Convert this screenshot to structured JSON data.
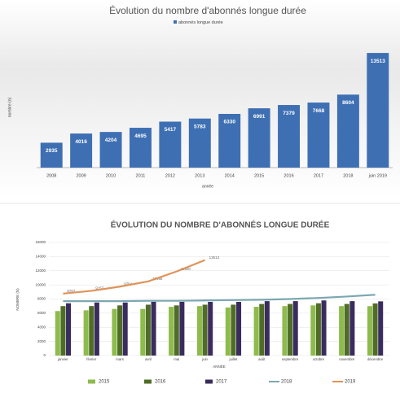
{
  "chart_data": [
    {
      "type": "bar",
      "title": "Évolution du nombre d'abonnés longue durée",
      "x_label": "année",
      "y_label": "nombre (n)",
      "categories": [
        "2008",
        "2009",
        "2010",
        "2011",
        "2012",
        "2013",
        "2014",
        "2015",
        "2016",
        "2017",
        "2018",
        "juin 2019"
      ],
      "series": [
        {
          "name": "abonnés longue durée",
          "color": "#3e6fb3",
          "values": [
            2935,
            4016,
            4204,
            4695,
            5417,
            5783,
            6330,
            6991,
            7379,
            7668,
            8604,
            13513
          ]
        }
      ],
      "ylim": [
        0,
        14000
      ],
      "data_labels": true
    },
    {
      "type": "combo",
      "title": "ÉVOLUTION DU NOMBRE D'ABONNÉS LONGUE DURÉE",
      "x_label": "ANNÉE",
      "y_label": "NOMBRE (N)",
      "categories": [
        "janvier",
        "février",
        "mars",
        "avril",
        "mai",
        "juin",
        "juillet",
        "août",
        "septembre",
        "octobre",
        "novembre",
        "décembre"
      ],
      "ylim": [
        0,
        16000
      ],
      "yticks": [
        0,
        2000,
        4000,
        6000,
        8000,
        10000,
        12000,
        14000,
        16000
      ],
      "grid": true,
      "legend": "bottom",
      "series": [
        {
          "name": "2015",
          "mark": "bar",
          "color": "#8dbb4c",
          "values": [
            6300,
            6400,
            6600,
            6600,
            6900,
            7000,
            6800,
            6900,
            7000,
            7100,
            7000,
            6991
          ]
        },
        {
          "name": "2016",
          "mark": "bar",
          "color": "#4f6d27",
          "values": [
            7000,
            7000,
            7100,
            7200,
            7100,
            7200,
            7200,
            7300,
            7300,
            7400,
            7300,
            7379
          ]
        },
        {
          "name": "2017",
          "mark": "bar",
          "color": "#3a2c5c",
          "values": [
            7400,
            7500,
            7500,
            7600,
            7600,
            7600,
            7600,
            7700,
            7700,
            7800,
            7700,
            7668
          ]
        },
        {
          "name": "2018",
          "mark": "line",
          "color": "#7ba7b1",
          "values": [
            7700,
            7700,
            7700,
            7750,
            7750,
            7800,
            7850,
            7900,
            8000,
            8150,
            8350,
            8604
          ]
        },
        {
          "name": "2019",
          "mark": "line",
          "color": "#df935a",
          "data_labels": true,
          "values": [
            8767,
            9157,
            9754,
            10495,
            11900,
            13513,
            null,
            null,
            null,
            null,
            null,
            null
          ]
        }
      ]
    }
  ]
}
